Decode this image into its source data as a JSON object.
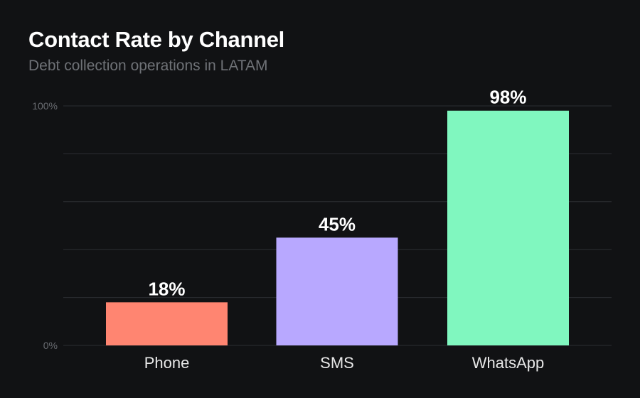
{
  "chart_data": {
    "type": "bar",
    "title": "Contact Rate by Channel",
    "subtitle": "Debt collection operations in LATAM",
    "categories": [
      "Phone",
      "SMS",
      "WhatsApp"
    ],
    "values": [
      18,
      45,
      98
    ],
    "data_labels": [
      "18%",
      "45%",
      "98%"
    ],
    "colors": [
      "#ff8571",
      "#b8a8ff",
      "#80f7bf"
    ],
    "ylim": [
      0,
      100
    ],
    "y_tick_labels": {
      "0": "0%",
      "100": "100%"
    },
    "gridlines": [
      0,
      20,
      40,
      60,
      80,
      100
    ],
    "grid": true,
    "xlabel": "",
    "ylabel": ""
  }
}
